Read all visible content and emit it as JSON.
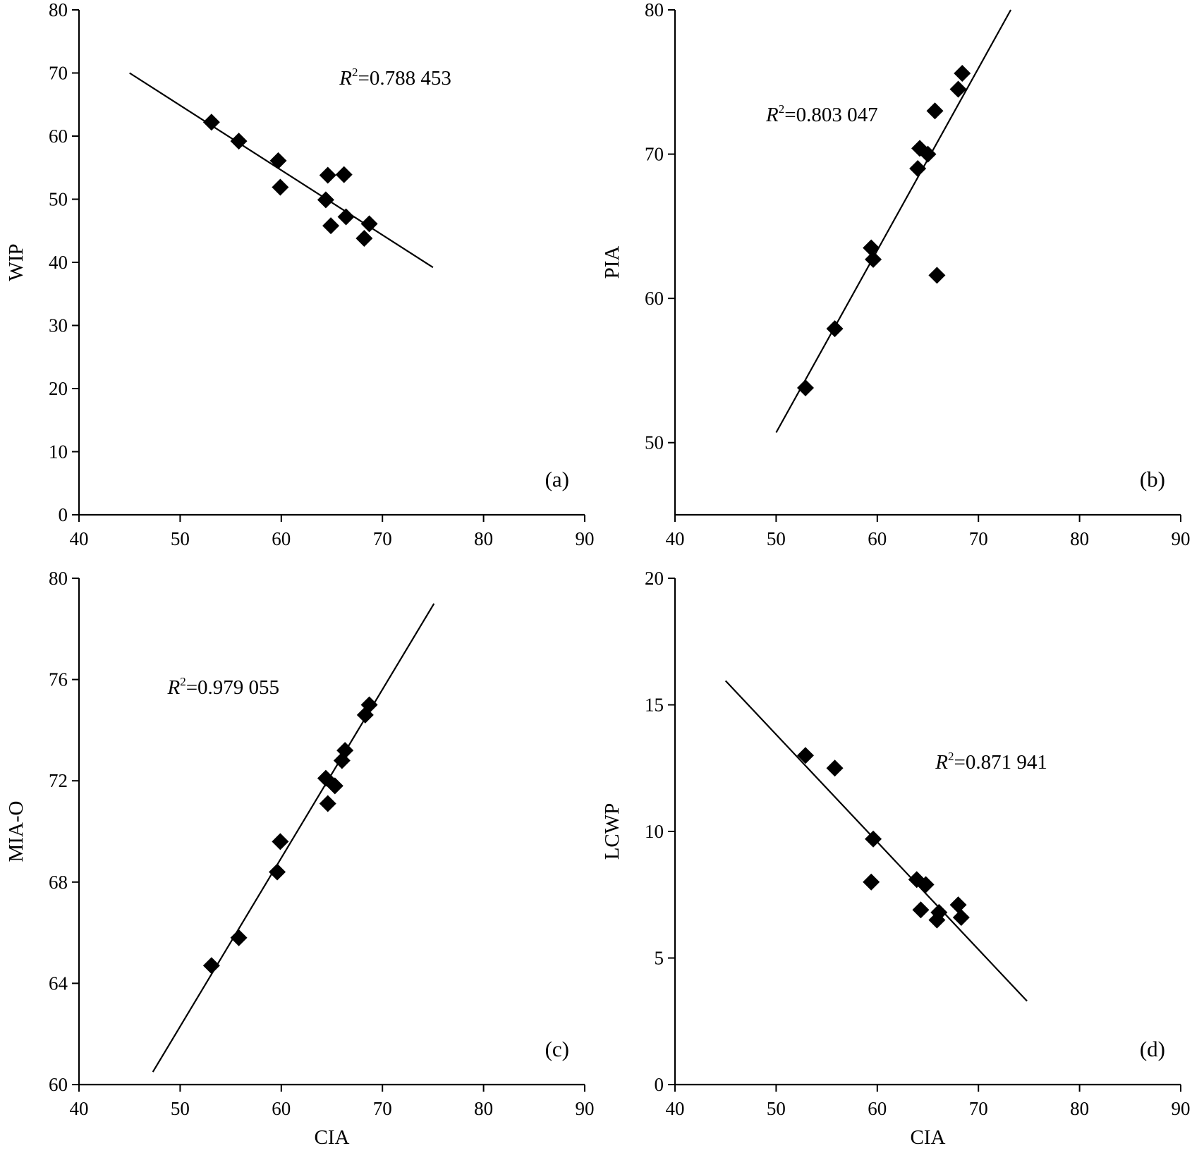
{
  "chart_data": [
    {
      "type": "scatter",
      "panel": "(a)",
      "xlabel": "",
      "ylabel": "WIP",
      "xlim": [
        40,
        90
      ],
      "ylim": [
        0,
        80
      ],
      "x_ticks": [
        "40",
        "50",
        "60",
        "70",
        "80",
        "90"
      ],
      "y_ticks": [
        "0",
        "10",
        "20",
        "30",
        "40",
        "50",
        "60",
        "70",
        "80"
      ],
      "r2_label": "=0.788 453",
      "r2_position": "top-center",
      "points": [
        {
          "x": 53.1,
          "y": 62.2
        },
        {
          "x": 55.8,
          "y": 59.2
        },
        {
          "x": 59.7,
          "y": 56.1
        },
        {
          "x": 59.9,
          "y": 51.9
        },
        {
          "x": 64.6,
          "y": 53.8
        },
        {
          "x": 66.2,
          "y": 53.9
        },
        {
          "x": 64.4,
          "y": 49.9
        },
        {
          "x": 64.9,
          "y": 45.8
        },
        {
          "x": 66.4,
          "y": 47.2
        },
        {
          "x": 68.7,
          "y": 46.1
        },
        {
          "x": 68.2,
          "y": 43.8
        }
      ],
      "fit_line": [
        [
          45,
          70.0
        ],
        [
          75,
          39.2
        ]
      ]
    },
    {
      "type": "scatter",
      "panel": "(b)",
      "xlabel": "",
      "ylabel": "PIA",
      "xlim": [
        40,
        90
      ],
      "ylim": [
        45,
        80
      ],
      "x_ticks": [
        "40",
        "50",
        "60",
        "70",
        "80",
        "90"
      ],
      "y_ticks": [
        "50",
        "60",
        "70",
        "80"
      ],
      "r2_label": "=0.803 047",
      "r2_position": "top-left",
      "points": [
        {
          "x": 52.9,
          "y": 53.8
        },
        {
          "x": 55.8,
          "y": 57.9
        },
        {
          "x": 59.6,
          "y": 62.7
        },
        {
          "x": 59.4,
          "y": 63.5
        },
        {
          "x": 64.2,
          "y": 70.4
        },
        {
          "x": 64.0,
          "y": 69.0
        },
        {
          "x": 65.0,
          "y": 70.0
        },
        {
          "x": 65.9,
          "y": 61.6
        },
        {
          "x": 65.7,
          "y": 73.0
        },
        {
          "x": 68.0,
          "y": 74.5
        },
        {
          "x": 68.4,
          "y": 75.6
        }
      ],
      "fit_line": [
        [
          50,
          50.7
        ],
        [
          73.2,
          80.0
        ]
      ]
    },
    {
      "type": "scatter",
      "panel": "(c)",
      "xlabel": "CIA",
      "ylabel": "MIA-O",
      "xlim": [
        40,
        90
      ],
      "ylim": [
        60,
        80
      ],
      "x_ticks": [
        "40",
        "50",
        "60",
        "70",
        "80",
        "90"
      ],
      "y_ticks": [
        "60",
        "64",
        "68",
        "72",
        "76",
        "80"
      ],
      "r2_label": "=0.979 055",
      "r2_position": "top-left",
      "points": [
        {
          "x": 53.1,
          "y": 64.7
        },
        {
          "x": 55.8,
          "y": 65.8
        },
        {
          "x": 59.6,
          "y": 68.4
        },
        {
          "x": 59.9,
          "y": 69.6
        },
        {
          "x": 64.4,
          "y": 72.1
        },
        {
          "x": 64.6,
          "y": 71.1
        },
        {
          "x": 65.3,
          "y": 71.8
        },
        {
          "x": 66.0,
          "y": 72.8
        },
        {
          "x": 66.3,
          "y": 73.2
        },
        {
          "x": 68.3,
          "y": 74.6
        },
        {
          "x": 68.7,
          "y": 75.0
        }
      ],
      "fit_line": [
        [
          47.3,
          60.5
        ],
        [
          75.1,
          79.0
        ]
      ]
    },
    {
      "type": "scatter",
      "panel": "(d)",
      "xlabel": "CIA",
      "ylabel": "LCWP",
      "xlim": [
        40,
        90
      ],
      "ylim": [
        0,
        20
      ],
      "x_ticks": [
        "40",
        "50",
        "60",
        "70",
        "80",
        "90"
      ],
      "y_ticks": [
        "0",
        "5",
        "10",
        "15",
        "20"
      ],
      "r2_label": "=0.871 941",
      "r2_position": "top-center",
      "points": [
        {
          "x": 52.9,
          "y": 13.0
        },
        {
          "x": 55.8,
          "y": 12.5
        },
        {
          "x": 59.6,
          "y": 9.7
        },
        {
          "x": 59.4,
          "y": 8.0
        },
        {
          "x": 63.9,
          "y": 8.1
        },
        {
          "x": 64.8,
          "y": 7.9
        },
        {
          "x": 64.3,
          "y": 6.9
        },
        {
          "x": 65.9,
          "y": 6.5
        },
        {
          "x": 66.1,
          "y": 6.8
        },
        {
          "x": 68.0,
          "y": 7.1
        },
        {
          "x": 68.3,
          "y": 6.6
        }
      ],
      "fit_line": [
        [
          45,
          15.95
        ],
        [
          74.8,
          3.3
        ]
      ]
    }
  ]
}
